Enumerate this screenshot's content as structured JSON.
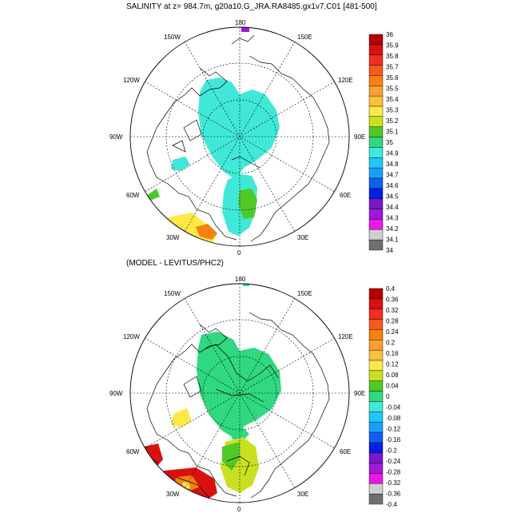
{
  "top": {
    "title": "SALINITY at z= 984.7m, g20a10.G_JRA.RA8485.gx1v7.C01 [481-500]",
    "lon_labels": {
      "n": "180",
      "nnw": "150W",
      "nne": "150E",
      "wnw": "120W",
      "ene": "120E",
      "w": "90W",
      "e": "90E",
      "wsw": "60W",
      "ese": "60E",
      "ssw": "30W",
      "sse": "30E",
      "s": "0"
    },
    "colorbar": {
      "labels": [
        "36",
        "35.9",
        "35.8",
        "35.7",
        "35.6",
        "35.5",
        "35.4",
        "35.3",
        "35.2",
        "35.1",
        "35",
        "34.9",
        "34.8",
        "34.7",
        "34.6",
        "34.5",
        "34.4",
        "34.3",
        "34.2",
        "34.1",
        "34"
      ],
      "colors": [
        "#b40000",
        "#d81010",
        "#ee3020",
        "#f45a20",
        "#f78010",
        "#f9a030",
        "#fbc040",
        "#fde848",
        "#c8e020",
        "#50c828",
        "#30d880",
        "#40e8d8",
        "#20c8f8",
        "#18a0f8",
        "#1060f0",
        "#0020e0",
        "#7818c8",
        "#a018d8",
        "#e818e8",
        "#d0d0d0",
        "#707070"
      ]
    }
  },
  "bottom": {
    "title": "(MODEL - LEVITUS/PHC2)",
    "lon_labels": {
      "n": "180",
      "nnw": "150W",
      "nne": "150E",
      "wnw": "120W",
      "ene": "120E",
      "w": "90W",
      "e": "90E",
      "wsw": "60W",
      "ese": "60E",
      "ssw": "30W",
      "sse": "30E",
      "s": "0"
    },
    "colorbar": {
      "labels": [
        "0.4",
        "0.36",
        "0.32",
        "0.28",
        "0.24",
        "0.2",
        "0.16",
        "0.12",
        "0.08",
        "0.04",
        "0",
        "-0.04",
        "-0.08",
        "-0.12",
        "-0.16",
        "-0.2",
        "-0.24",
        "-0.28",
        "-0.32",
        "-0.36",
        "-0.4"
      ],
      "colors": [
        "#b40000",
        "#d81010",
        "#ee3020",
        "#f45a20",
        "#f78010",
        "#f9a030",
        "#fbc040",
        "#fde848",
        "#c8e020",
        "#50c828",
        "#30d880",
        "#40e8d8",
        "#20c8f8",
        "#18a0f8",
        "#1060f0",
        "#0020e0",
        "#7818c8",
        "#a018d8",
        "#e818e8",
        "#d0d0d0",
        "#707070"
      ]
    }
  },
  "palette": {
    "arctic_top": "#40e8d8",
    "arctic_bottom": "#30d880",
    "atlantic_green": "#50c828",
    "atlantic_lime": "#c8e020",
    "yellow": "#fde848",
    "orange": "#f78010",
    "red": "#d81010",
    "purple": "#a018d8"
  }
}
